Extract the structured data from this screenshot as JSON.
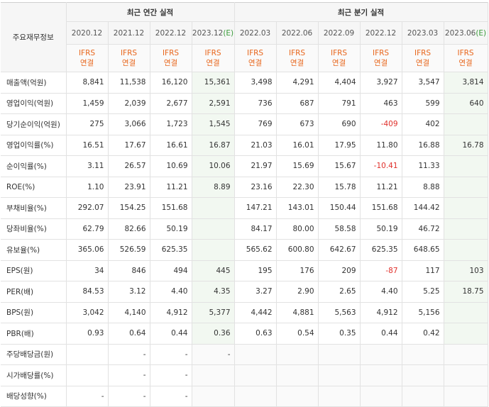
{
  "header": {
    "row_label": "주요재무정보",
    "annual_group": "최근 연간 실적",
    "quarter_group": "최근 분기 실적",
    "annual_periods": [
      "2020.12",
      "2021.12",
      "2022.12",
      "2023.12"
    ],
    "annual_estimate_mark": "(E)",
    "quarter_periods": [
      "2022.03",
      "2022.06",
      "2022.09",
      "2022.12",
      "2023.03",
      "2023.06"
    ],
    "quarter_estimate_mark": "(E)",
    "accounting_line1": "IFRS",
    "accounting_line2": "연결"
  },
  "rows": [
    {
      "label": "매출액(억원)",
      "values": [
        "8,841",
        "11,538",
        "16,120",
        "15,361",
        "3,498",
        "4,291",
        "4,404",
        "3,927",
        "3,547",
        "3,814"
      ],
      "neg": []
    },
    {
      "label": "영업이익(억원)",
      "values": [
        "1,459",
        "2,039",
        "2,677",
        "2,591",
        "736",
        "687",
        "791",
        "463",
        "599",
        "640"
      ],
      "neg": []
    },
    {
      "label": "당기순이익(억원)",
      "values": [
        "275",
        "3,066",
        "1,723",
        "1,545",
        "769",
        "673",
        "690",
        "-409",
        "402",
        ""
      ],
      "neg": [
        7
      ]
    },
    {
      "label": "영업이익률(%)",
      "values": [
        "16.51",
        "17.67",
        "16.61",
        "16.87",
        "21.03",
        "16.01",
        "17.95",
        "11.80",
        "16.88",
        "16.78"
      ],
      "neg": []
    },
    {
      "label": "순이익률(%)",
      "values": [
        "3.11",
        "26.57",
        "10.69",
        "10.06",
        "21.97",
        "15.69",
        "15.67",
        "-10.41",
        "11.33",
        ""
      ],
      "neg": [
        7
      ]
    },
    {
      "label": "ROE(%)",
      "values": [
        "1.10",
        "23.91",
        "11.21",
        "8.89",
        "23.16",
        "22.30",
        "15.78",
        "11.21",
        "8.88",
        ""
      ],
      "neg": []
    },
    {
      "label": "부채비율(%)",
      "values": [
        "292.07",
        "154.25",
        "151.68",
        "",
        "147.21",
        "143.01",
        "150.44",
        "151.68",
        "144.42",
        ""
      ],
      "neg": []
    },
    {
      "label": "당좌비율(%)",
      "values": [
        "62.79",
        "82.66",
        "50.19",
        "",
        "84.17",
        "80.00",
        "58.58",
        "50.19",
        "46.72",
        ""
      ],
      "neg": []
    },
    {
      "label": "유보율(%)",
      "values": [
        "365.06",
        "526.59",
        "625.35",
        "",
        "565.62",
        "600.80",
        "642.67",
        "625.35",
        "648.65",
        ""
      ],
      "neg": []
    },
    {
      "label": "EPS(원)",
      "values": [
        "34",
        "846",
        "494",
        "445",
        "195",
        "176",
        "209",
        "-87",
        "117",
        "103"
      ],
      "neg": [
        7
      ]
    },
    {
      "label": "PER(배)",
      "values": [
        "84.53",
        "3.12",
        "4.40",
        "4.35",
        "3.27",
        "2.90",
        "2.65",
        "4.40",
        "5.25",
        "18.75"
      ],
      "neg": []
    },
    {
      "label": "BPS(원)",
      "values": [
        "3,042",
        "4,140",
        "4,912",
        "5,377",
        "4,442",
        "4,881",
        "5,563",
        "4,912",
        "5,156",
        ""
      ],
      "neg": []
    },
    {
      "label": "PBR(배)",
      "values": [
        "0.93",
        "0.64",
        "0.44",
        "0.36",
        "0.63",
        "0.54",
        "0.35",
        "0.44",
        "0.42",
        ""
      ],
      "neg": []
    },
    {
      "label": "주당배당금(원)",
      "values": [
        "",
        "-",
        "-",
        "-",
        "",
        "",
        "",
        "",
        "",
        ""
      ],
      "neg": []
    },
    {
      "label": "시가배당률(%)",
      "values": [
        "",
        "-",
        "-",
        "",
        "",
        "",
        "",
        "",
        "",
        ""
      ],
      "neg": []
    },
    {
      "label": "배당성향(%)",
      "values": [
        "-",
        "-",
        "-",
        "",
        "",
        "",
        "",
        "",
        "",
        ""
      ],
      "neg": []
    }
  ]
}
